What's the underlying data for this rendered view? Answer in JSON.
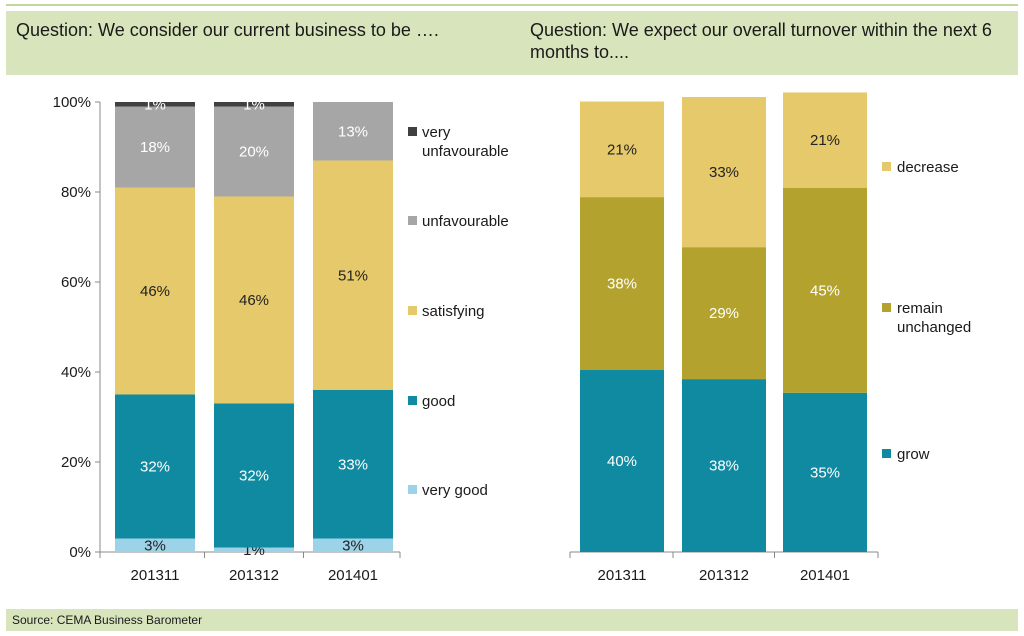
{
  "header": {
    "left_question": "Question: We consider our current business to be ….",
    "right_question": "Question: We expect our overall turnover within the next 6 months to...."
  },
  "footer": {
    "source": "Source: CEMA Business Barometer"
  },
  "chart_data": [
    {
      "type": "bar",
      "stacked": true,
      "title": "",
      "categories": [
        "201311",
        "201312",
        "201401"
      ],
      "ylim": [
        0,
        100
      ],
      "yticks": [
        "0%",
        "20%",
        "40%",
        "60%",
        "80%",
        "100%"
      ],
      "legend_position": "right",
      "series": [
        {
          "name": "very good",
          "values": [
            3,
            1,
            3
          ],
          "labels": [
            "3%",
            "1%",
            "3%"
          ],
          "color": "#9dd3e8",
          "label_color": "#222222"
        },
        {
          "name": "good",
          "values": [
            32,
            32,
            33
          ],
          "labels": [
            "32%",
            "32%",
            "33%"
          ],
          "color": "#108aa0",
          "label_color": "#ffffff"
        },
        {
          "name": "satisfying",
          "values": [
            46,
            46,
            51
          ],
          "labels": [
            "46%",
            "46%",
            "51%"
          ],
          "color": "#e6c96a",
          "label_color": "#222222"
        },
        {
          "name": "unfavourable",
          "values": [
            18,
            20,
            13
          ],
          "labels": [
            "18%",
            "20%",
            "13%"
          ],
          "color": "#a6a6a6",
          "label_color": "#ffffff"
        },
        {
          "name": "very unfavourable",
          "values": [
            1,
            1,
            0
          ],
          "labels": [
            "1%",
            "1%",
            ""
          ],
          "color": "#404040",
          "label_color": "#ffffff"
        }
      ]
    },
    {
      "type": "bar",
      "stacked": true,
      "title": "",
      "categories": [
        "201311",
        "201312",
        "201401"
      ],
      "ylim": [
        0,
        100
      ],
      "legend_position": "right",
      "series": [
        {
          "name": "grow",
          "values": [
            40,
            38,
            35
          ],
          "labels": [
            "40%",
            "38%",
            "35%"
          ],
          "color": "#108aa0",
          "label_color": "#ffffff"
        },
        {
          "name": "remain unchanged",
          "values": [
            38,
            29,
            45
          ],
          "labels": [
            "38%",
            "29%",
            "45%"
          ],
          "color": "#b3a32e",
          "label_color": "#ffffff"
        },
        {
          "name": "decrease",
          "values": [
            21,
            33,
            21
          ],
          "labels": [
            "21%",
            "33%",
            "21%"
          ],
          "color": "#e6c96a",
          "label_color": "#222222"
        }
      ]
    }
  ]
}
